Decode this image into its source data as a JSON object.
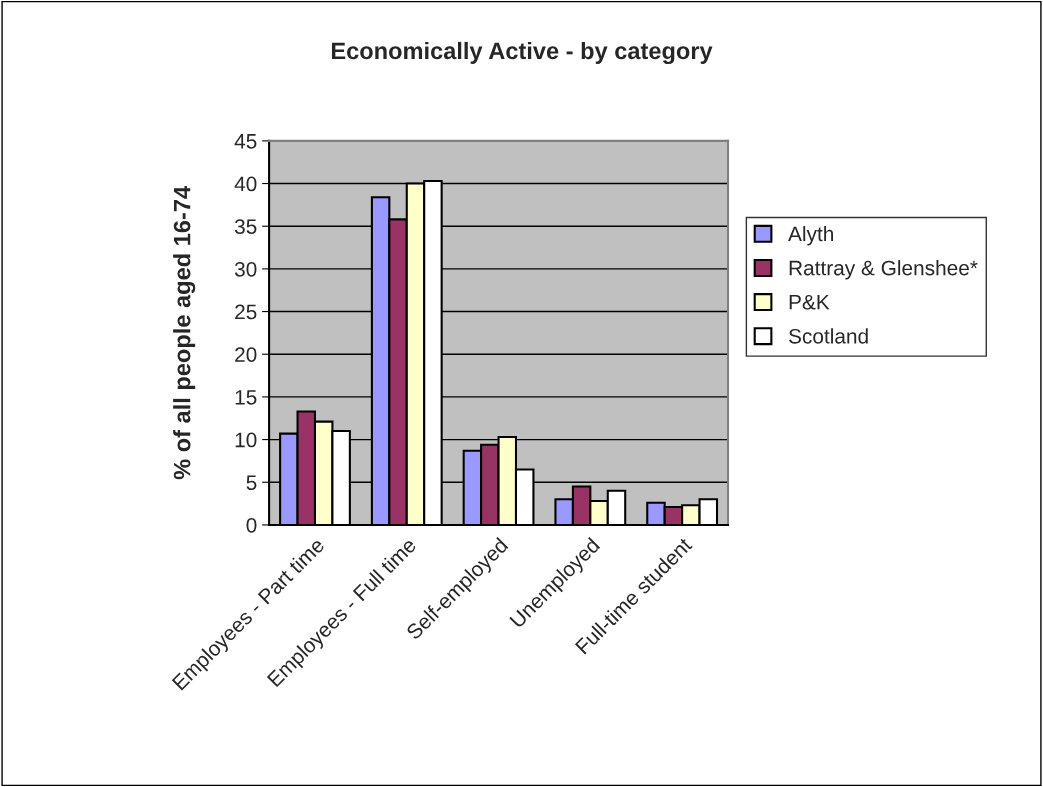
{
  "chart_data": {
    "type": "bar",
    "title": "Economically Active - by category",
    "ylabel": "% of all people aged 16-74",
    "categories": [
      "Employees - Part time",
      "Employees - Full time",
      "Self-employed",
      "Unemployed",
      "Full-time student"
    ],
    "series": [
      {
        "name": "Alyth",
        "color": "#9999ff",
        "values": [
          10.7,
          38.4,
          8.7,
          3.0,
          2.6
        ]
      },
      {
        "name": "Rattray & Glenshee*",
        "color": "#993366",
        "values": [
          13.3,
          35.8,
          9.4,
          4.5,
          2.1
        ]
      },
      {
        "name": "P&K",
        "color": "#ffffcc",
        "values": [
          12.1,
          40.0,
          10.3,
          2.8,
          2.3
        ]
      },
      {
        "name": "Scotland",
        "color": "#ffffff",
        "values": [
          11.0,
          40.3,
          6.5,
          4.0,
          3.0
        ]
      }
    ],
    "ylim": [
      0,
      45
    ],
    "yticks": [
      0,
      5,
      10,
      15,
      20,
      25,
      30,
      35,
      40,
      45
    ],
    "grid": "y",
    "legend": "right"
  }
}
